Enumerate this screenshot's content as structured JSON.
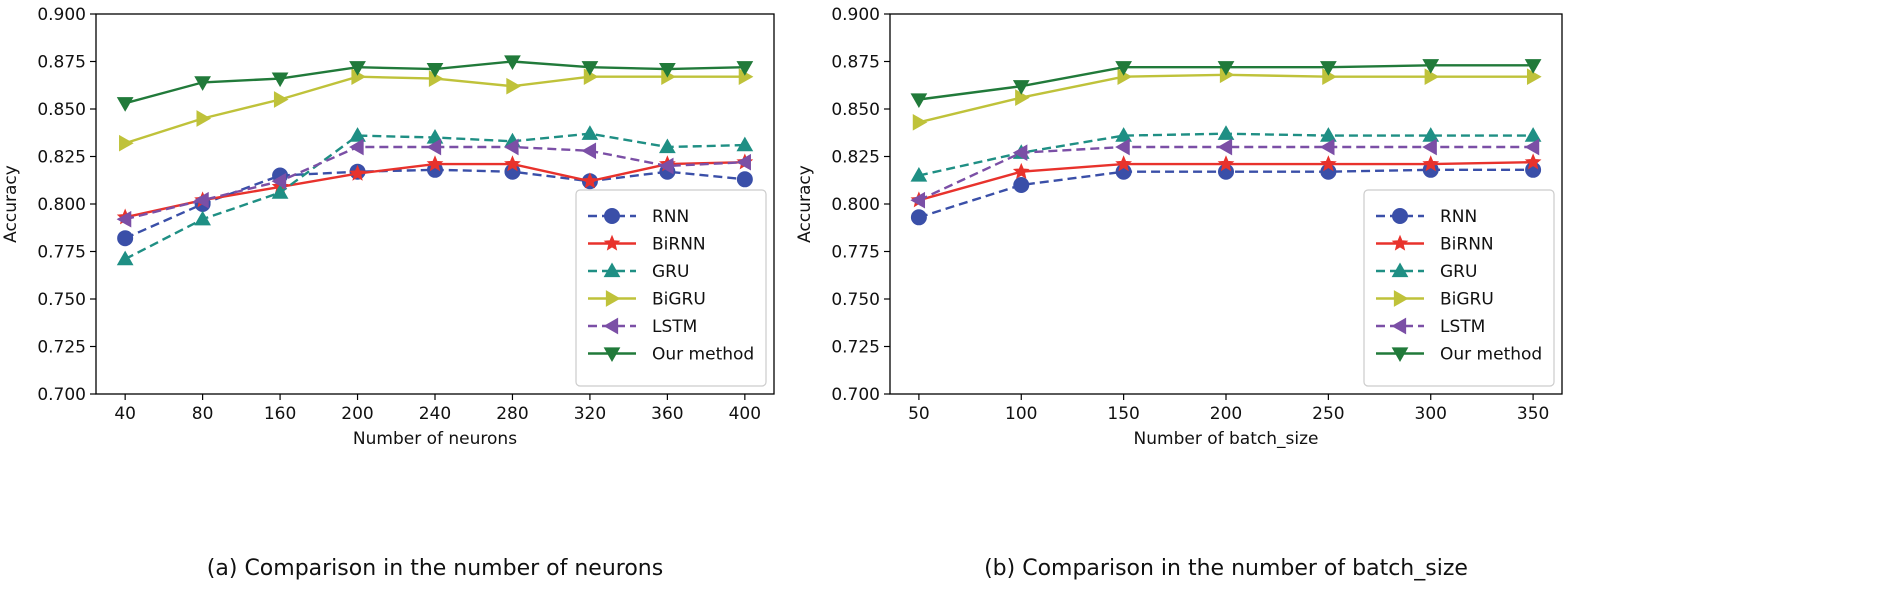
{
  "chart_data": [
    {
      "type": "line",
      "id": "a",
      "xlabel": "Number of neurons",
      "ylabel": "Accuracy",
      "caption": "(a) Comparison in the number of neurons",
      "categories": [
        "40",
        "80",
        "160",
        "200",
        "240",
        "280",
        "320",
        "360",
        "400"
      ],
      "ylim": [
        0.7,
        0.9
      ],
      "yticks": [
        "0.700",
        "0.725",
        "0.750",
        "0.775",
        "0.800",
        "0.825",
        "0.850",
        "0.875",
        "0.900"
      ],
      "legend_position": "lower-right",
      "series": [
        {
          "name": "RNN",
          "color": "#3a4fa8",
          "dash": true,
          "marker": "circle",
          "values": [
            0.782,
            0.8,
            0.815,
            0.817,
            0.818,
            0.817,
            0.812,
            0.817,
            0.813
          ]
        },
        {
          "name": "BiRNN",
          "color": "#e8322c",
          "dash": false,
          "marker": "star",
          "values": [
            0.793,
            0.802,
            0.809,
            0.816,
            0.821,
            0.821,
            0.812,
            0.821,
            0.822
          ]
        },
        {
          "name": "GRU",
          "color": "#1f8f84",
          "dash": true,
          "marker": "triangle-up",
          "values": [
            0.771,
            0.792,
            0.806,
            0.836,
            0.835,
            0.833,
            0.837,
            0.83,
            0.831
          ]
        },
        {
          "name": "BiGRU",
          "color": "#bfc23a",
          "dash": false,
          "marker": "triangle-right",
          "values": [
            0.832,
            0.845,
            0.855,
            0.867,
            0.866,
            0.862,
            0.867,
            0.867,
            0.867
          ]
        },
        {
          "name": "LSTM",
          "color": "#7b4fa6",
          "dash": true,
          "marker": "triangle-left",
          "values": [
            0.792,
            0.802,
            0.812,
            0.83,
            0.83,
            0.83,
            0.828,
            0.82,
            0.822
          ]
        },
        {
          "name": "Our method",
          "color": "#217a3a",
          "dash": false,
          "marker": "triangle-down",
          "values": [
            0.853,
            0.864,
            0.866,
            0.872,
            0.871,
            0.875,
            0.872,
            0.871,
            0.872
          ]
        }
      ]
    },
    {
      "type": "line",
      "id": "b",
      "xlabel": "Number of batch_size",
      "ylabel": "Accuracy",
      "caption": "(b) Comparison in the number of batch_size",
      "categories": [
        "50",
        "100",
        "150",
        "200",
        "250",
        "300",
        "350"
      ],
      "ylim": [
        0.7,
        0.9
      ],
      "yticks": [
        "0.700",
        "0.725",
        "0.750",
        "0.775",
        "0.800",
        "0.825",
        "0.850",
        "0.875",
        "0.900"
      ],
      "legend_position": "lower-right",
      "series": [
        {
          "name": "RNN",
          "color": "#3a4fa8",
          "dash": true,
          "marker": "circle",
          "values": [
            0.793,
            0.81,
            0.817,
            0.817,
            0.817,
            0.818,
            0.818
          ]
        },
        {
          "name": "BiRNN",
          "color": "#e8322c",
          "dash": false,
          "marker": "star",
          "values": [
            0.802,
            0.817,
            0.821,
            0.821,
            0.821,
            0.821,
            0.822
          ]
        },
        {
          "name": "GRU",
          "color": "#1f8f84",
          "dash": true,
          "marker": "triangle-up",
          "values": [
            0.815,
            0.827,
            0.836,
            0.837,
            0.836,
            0.836,
            0.836
          ]
        },
        {
          "name": "BiGRU",
          "color": "#bfc23a",
          "dash": false,
          "marker": "triangle-right",
          "values": [
            0.843,
            0.856,
            0.867,
            0.868,
            0.867,
            0.867,
            0.867
          ]
        },
        {
          "name": "LSTM",
          "color": "#7b4fa6",
          "dash": true,
          "marker": "triangle-left",
          "values": [
            0.802,
            0.827,
            0.83,
            0.83,
            0.83,
            0.83,
            0.83
          ]
        },
        {
          "name": "Our method",
          "color": "#217a3a",
          "dash": false,
          "marker": "triangle-down",
          "values": [
            0.855,
            0.862,
            0.872,
            0.872,
            0.872,
            0.873,
            0.873
          ]
        }
      ]
    }
  ]
}
